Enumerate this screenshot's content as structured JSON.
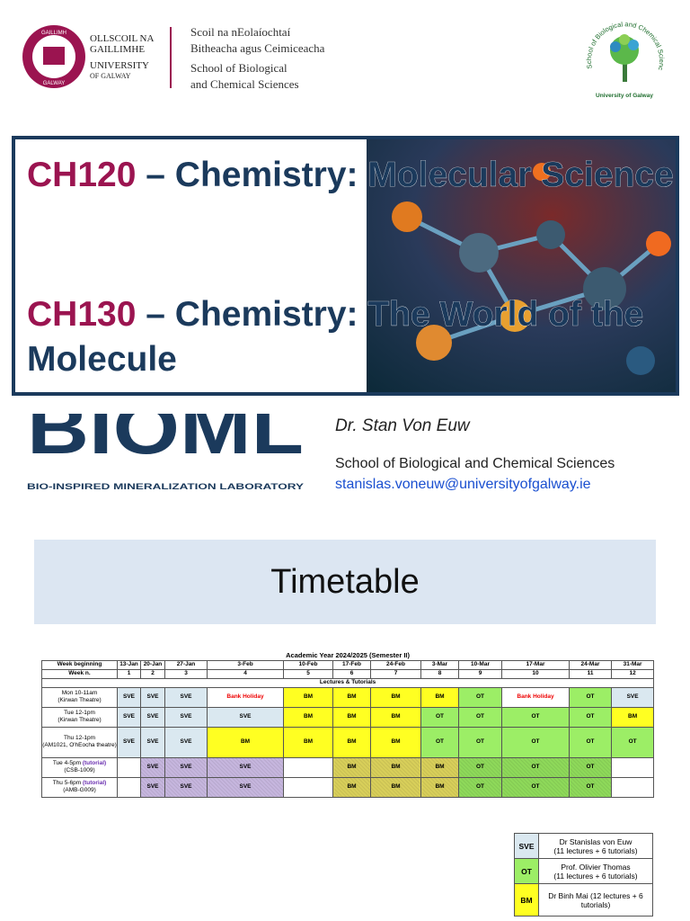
{
  "header": {
    "university_lines": [
      "OLLSCOIL NA",
      "GAILLIMHE",
      "UNIVERSITY",
      "OF GALWAY"
    ],
    "crest_text": [
      "GAILLIMH",
      "GALWAY"
    ],
    "school_lines": [
      "Scoil na nEolaíochtaí",
      "Bitheacha agus Ceimiceacha",
      "School of Biological",
      "and Chemical Sciences"
    ],
    "badge_arc": "School of Biological and Chemical Sciences",
    "badge_bottom": "University of Galway"
  },
  "title": {
    "courses": [
      {
        "code": "CH120",
        "name": "– Chemistry: Molecular Science"
      },
      {
        "code": "CH130",
        "name": "– Chemistry: The World of the Molecule"
      }
    ]
  },
  "lab": {
    "logo": "BIOML",
    "subtitle": "BIO-INSPIRED MINERALIZATION LABORATORY"
  },
  "contact": {
    "name": "Dr. Stan Von Euw",
    "school": "School of Biological and Chemical Sciences",
    "email": "stanislas.voneuw@universityofgalway.ie"
  },
  "banner": {
    "title": "Timetable"
  },
  "timetable": {
    "title": "Academic Year 2024/2025 (Semester II)",
    "header_label": "Week beginning",
    "weeks": [
      "13-Jan",
      "20-Jan",
      "27-Jan",
      "3-Feb",
      "10-Feb",
      "17-Feb",
      "24-Feb",
      "3-Mar",
      "10-Mar",
      "17-Mar",
      "24-Mar",
      "31-Mar"
    ],
    "week_n_label": "Week n.",
    "week_numbers": [
      1,
      2,
      3,
      4,
      5,
      6,
      7,
      8,
      9,
      10,
      11,
      12
    ],
    "section": "Lectures & Tutorials",
    "colors": {
      "SVE": "#dae8f0",
      "BM": "#ffff22",
      "OT": "#9cee66"
    },
    "tutorial_colors": {
      "SVE": "#c6b6de",
      "BM": "#d8cf5a",
      "OT": "#8ed95a"
    },
    "rows": [
      {
        "time": "Mon 10-11am",
        "room": "(Kirwan Theatre)",
        "cells": [
          "SVE",
          "SVE",
          "SVE",
          "Bank Holiday",
          "BM",
          "BM",
          "BM",
          "BM",
          "OT",
          "Bank Holiday",
          "OT",
          "SVE"
        ]
      },
      {
        "time": "Tue 12-1pm",
        "room": "(Kirwan Theatre)",
        "cells": [
          "SVE",
          "SVE",
          "SVE",
          "SVE",
          "BM",
          "BM",
          "BM",
          "OT",
          "OT",
          "OT",
          "OT",
          "BM"
        ]
      },
      {
        "time": "Thu 12-1pm",
        "room": "(AM1021, O'hEocha theatre)",
        "cells": [
          "SVE",
          "SVE",
          "SVE",
          "BM",
          "BM",
          "BM",
          "BM",
          "OT",
          "OT",
          "OT",
          "OT",
          "OT"
        ]
      },
      {
        "time": "Tue 4-5pm",
        "tag": "(tutorial)",
        "room": "(CSB-1009)",
        "cells": [
          null,
          "SVE",
          "SVE",
          "SVE",
          null,
          "BM",
          "BM",
          "BM",
          "OT",
          "OT",
          "OT",
          null
        ]
      },
      {
        "time": "Thu 5-6pm",
        "tag": "(tutorial)",
        "room": "(AMB-G009)",
        "cells": [
          null,
          "SVE",
          "SVE",
          "SVE",
          null,
          "BM",
          "BM",
          "BM",
          "OT",
          "OT",
          "OT",
          null
        ]
      }
    ]
  },
  "legend": [
    {
      "code": "SVE",
      "name": "Dr Stanislas von Euw",
      "detail": "(11 lectures + 6 tutorials)"
    },
    {
      "code": "OT",
      "name": "Prof. Olivier Thomas",
      "detail": "(11 lectures + 6 tutorials)"
    },
    {
      "code": "BM",
      "name": "Dr Binh Mai  (12 lectures + 6 tutorials)"
    }
  ]
}
